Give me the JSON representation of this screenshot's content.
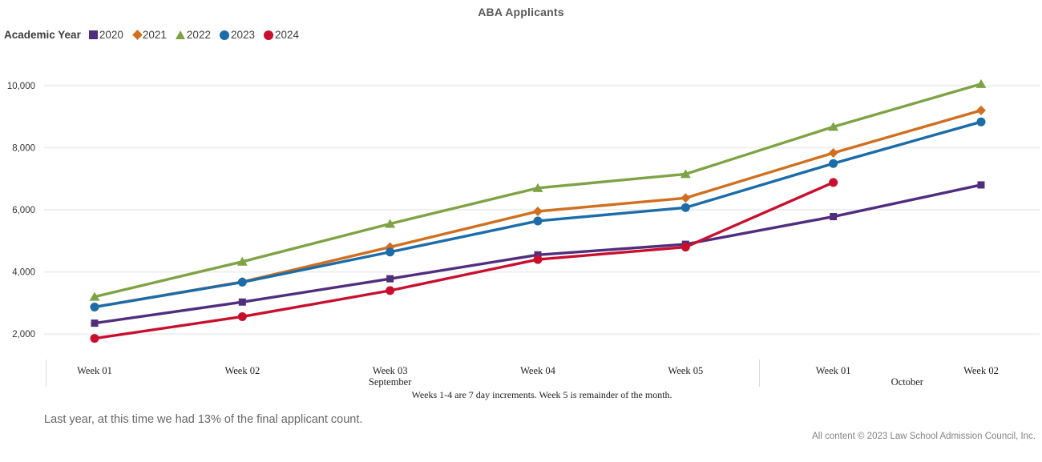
{
  "page": {
    "title": "ABA Applicants",
    "footnote": "Last year, at this time we had 13% of the final applicant count.",
    "copyright": "All content © 2023 Law School Admission Council, Inc."
  },
  "legend": {
    "label": "Academic Year",
    "items": [
      {
        "year": "2020",
        "marker": "square",
        "color": "#512D7E"
      },
      {
        "year": "2021",
        "marker": "diamond",
        "color": "#D06F1F"
      },
      {
        "year": "2022",
        "marker": "triangle",
        "color": "#7FA344"
      },
      {
        "year": "2023",
        "marker": "circle",
        "color": "#1B6CA8"
      },
      {
        "year": "2024",
        "marker": "circle",
        "color": "#C8102E"
      }
    ]
  },
  "chart_data": {
    "type": "line",
    "title": "ABA Applicants",
    "xlabel": "",
    "ylabel": "",
    "ylim": [
      1200,
      10600
    ],
    "yticks": [
      2000,
      4000,
      6000,
      8000,
      10000
    ],
    "ytick_labels": [
      "2,000",
      "4,000",
      "6,000",
      "8,000",
      "10,000"
    ],
    "grid": "horizontal",
    "legend_position": "top-left",
    "categories": [
      "Week 01",
      "Week 02",
      "Week 03",
      "Week 04",
      "Week 05",
      "Week 01",
      "Week 02"
    ],
    "month_groups": [
      {
        "label": "September",
        "from": 0,
        "to": 4
      },
      {
        "label": "October",
        "from": 5,
        "to": 6
      }
    ],
    "x_note": "Weeks 1-4 are 7 day increments. Week 5 is remainder of the month.",
    "series": [
      {
        "name": "2020",
        "marker": "square",
        "color": "#512D7E",
        "values": [
          2350,
          3030,
          3780,
          4550,
          4890,
          5780,
          6800
        ]
      },
      {
        "name": "2021",
        "marker": "diamond",
        "color": "#D06F1F",
        "values": [
          2870,
          3680,
          4800,
          5950,
          6380,
          7830,
          9200
        ]
      },
      {
        "name": "2022",
        "marker": "triangle",
        "color": "#7FA344",
        "values": [
          3200,
          4330,
          5550,
          6700,
          7150,
          8670,
          10050
        ]
      },
      {
        "name": "2023",
        "marker": "circle",
        "color": "#1B6CA8",
        "values": [
          2870,
          3670,
          4640,
          5640,
          6070,
          7490,
          8830
        ]
      },
      {
        "name": "2024",
        "marker": "circle",
        "color": "#C8102E",
        "values": [
          1860,
          2560,
          3400,
          4400,
          4800,
          6880,
          null
        ]
      }
    ]
  }
}
